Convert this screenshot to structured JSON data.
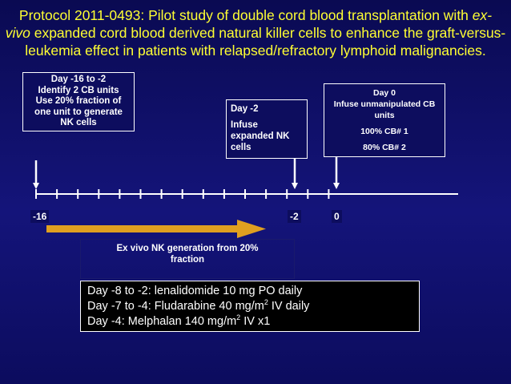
{
  "title": {
    "line1_prefix": "Protocol 2011-0493: Pilot study of double cord blood transplantation with ",
    "line1_italic": "ex-",
    "line2_italic": "vivo",
    "line2_rest": " expanded cord blood derived natural killer cells to enhance the graft-versus-",
    "line3": "leukemia effect in patients with relapsed/refractory lymphoid malignancies."
  },
  "boxes": {
    "day16": {
      "line1": "Day -16 to -2",
      "line2": "Identify 2 CB units",
      "line3": "Use 20% fraction of",
      "line4": "one unit to generate",
      "line5": "NK cells"
    },
    "day2": {
      "line1": "Day -2",
      "line2": "Infuse",
      "line3": "expanded NK",
      "line4": "cells"
    },
    "day0": {
      "line1": "Day 0",
      "line2": "Infuse unmanipulated CB",
      "line3": "units",
      "line4": "100% CB# 1",
      "line5": "80% CB# 2"
    },
    "nkgen": {
      "line1": "Ex vivo NK generation from 20%",
      "line2": "fraction"
    },
    "regimen": {
      "line1": "Day -8 to -2: lenalidomide 10 mg PO daily",
      "line2_prefix": "Day -7 to -4: Fludarabine 40 mg/m",
      "line2_sup": "2",
      "line2_suffix": " IV daily",
      "line3_prefix": "Day -4: Melphalan 140 mg/m",
      "line3_sup": "2",
      "line3_suffix": " IV x1"
    }
  },
  "timeline": {
    "labels": [
      "-16",
      "-2",
      "0"
    ],
    "tick_count": 15,
    "arrow_color": "#e0a020",
    "line_color": "#ffffff"
  },
  "colors": {
    "background": "#10106a",
    "title": "#ffff33",
    "box_fill": "#0d0d5e",
    "regimen_fill": "#000000"
  }
}
